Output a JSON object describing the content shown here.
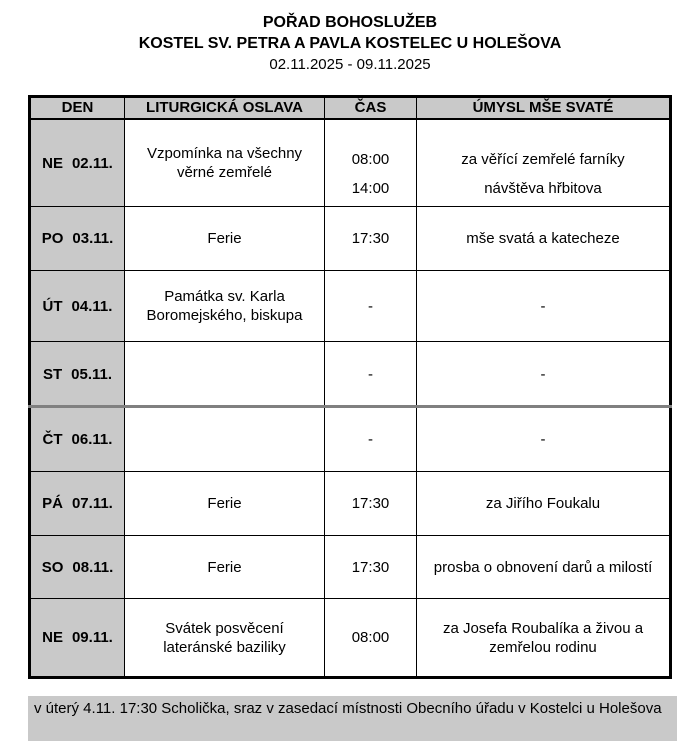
{
  "header": {
    "title": "POŘAD BOHOSLUŽEB",
    "subtitle": "KOSTEL SV. PETRA A PAVLA KOSTELEC U HOLEŠOVA",
    "date_range": "02.11.2025 - 09.11.2025"
  },
  "table": {
    "columns": [
      "DEN",
      "LITURGICKÁ OSLAVA",
      "ČAS",
      "ÚMYSL MŠE SVATÉ"
    ],
    "rows": [
      {
        "day": "NE",
        "date": "02.11.",
        "celebration": "Vzpomínka na všechny věrné zemřelé",
        "entries": [
          {
            "time": "08:00",
            "intention": "za věřící zemřelé farníky"
          },
          {
            "time": "14:00",
            "intention": "návštěva hřbitova"
          }
        ]
      },
      {
        "day": "PO",
        "date": "03.11.",
        "celebration": "Ferie",
        "entries": [
          {
            "time": "17:30",
            "intention": "mše svatá a katecheze"
          }
        ]
      },
      {
        "day": "ÚT",
        "date": "04.11.",
        "celebration": "Památka sv. Karla Boromejského, biskupa",
        "entries": [
          {
            "time": "-",
            "intention": "-"
          }
        ]
      },
      {
        "day": "ST",
        "date": "05.11.",
        "celebration": "",
        "entries": [
          {
            "time": "-",
            "intention": "-"
          }
        ]
      },
      {
        "day": "ČT",
        "date": "06.11.",
        "celebration": "",
        "entries": [
          {
            "time": "-",
            "intention": "-"
          }
        ]
      },
      {
        "day": "PÁ",
        "date": "07.11.",
        "celebration": "Ferie",
        "entries": [
          {
            "time": "17:30",
            "intention": "za Jiřího Foukalu"
          }
        ]
      },
      {
        "day": "SO",
        "date": "08.11.",
        "celebration": "Ferie",
        "entries": [
          {
            "time": "17:30",
            "intention": "prosba o obnovení darů a milostí"
          }
        ]
      },
      {
        "day": "NE",
        "date": "09.11.",
        "celebration": "Svátek posvěcení lateránské baziliky",
        "entries": [
          {
            "time": "08:00",
            "intention": "za Josefa Roubalíka a živou a zemřelou rodinu"
          }
        ]
      }
    ]
  },
  "footer": {
    "note": "v úterý 4.11. 17:30 Scholička, sraz v zasedací místnosti Obecního úřadu v Kostelci u Holešova"
  },
  "colors": {
    "cell_gray": "#c9c9c9",
    "border_black": "#000000",
    "page_break_gray": "#808080"
  }
}
